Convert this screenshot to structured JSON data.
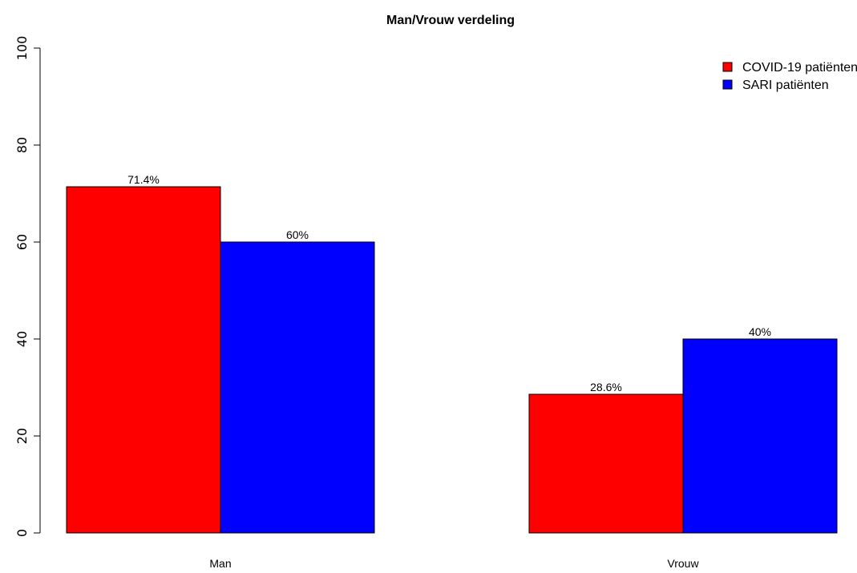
{
  "chart_data": {
    "type": "bar",
    "title": "Man/Vrouw verdeling",
    "categories": [
      "Man",
      "Vrouw"
    ],
    "series": [
      {
        "name": "COVID-19 patiënten",
        "values": [
          71.4,
          28.6
        ],
        "labels": [
          "71.4%",
          "28.6%"
        ],
        "color": "#ff0000"
      },
      {
        "name": "SARI patiënten",
        "values": [
          60,
          40
        ],
        "labels": [
          "60%",
          "40%"
        ],
        "color": "#0000ff"
      }
    ],
    "ylim": [
      0,
      100
    ],
    "yticks": [
      0,
      20,
      40,
      60,
      80,
      100
    ],
    "grid": false,
    "legend_position": "top-right",
    "bar_border_color": "#000000"
  }
}
